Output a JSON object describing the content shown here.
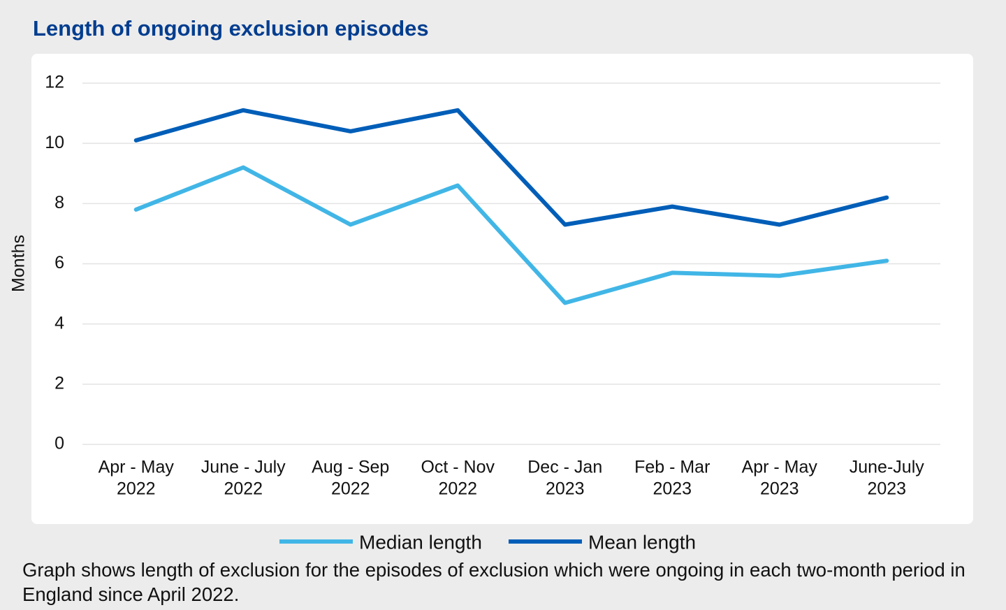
{
  "chart_data": {
    "type": "line",
    "title": "Length of ongoing exclusion episodes",
    "y_label": "Months",
    "categories": [
      [
        "Apr - May",
        "2022"
      ],
      [
        "June - July",
        "2022"
      ],
      [
        "Aug - Sep",
        "2022"
      ],
      [
        "Oct - Nov",
        "2022"
      ],
      [
        "Dec - Jan",
        "2023"
      ],
      [
        "Feb - Mar",
        "2023"
      ],
      [
        "Apr - May",
        "2023"
      ],
      [
        "June-July",
        "2023"
      ]
    ],
    "series": [
      {
        "name": "Median length",
        "color": "#41b6e6",
        "values": [
          7.8,
          9.2,
          7.3,
          8.6,
          4.7,
          5.7,
          5.6,
          6.1
        ]
      },
      {
        "name": "Mean length",
        "color": "#005eb8",
        "values": [
          10.1,
          11.1,
          10.4,
          11.1,
          7.3,
          7.9,
          7.3,
          8.2
        ]
      }
    ],
    "ylim": [
      0,
      12
    ],
    "yticks": [
      0,
      2,
      4,
      6,
      8,
      10,
      12
    ],
    "grid": true,
    "legend": "bottom",
    "caption": "Graph shows length of exclusion for the episodes of exclusion which were ongoing in each two-month period in England since April 2022."
  }
}
